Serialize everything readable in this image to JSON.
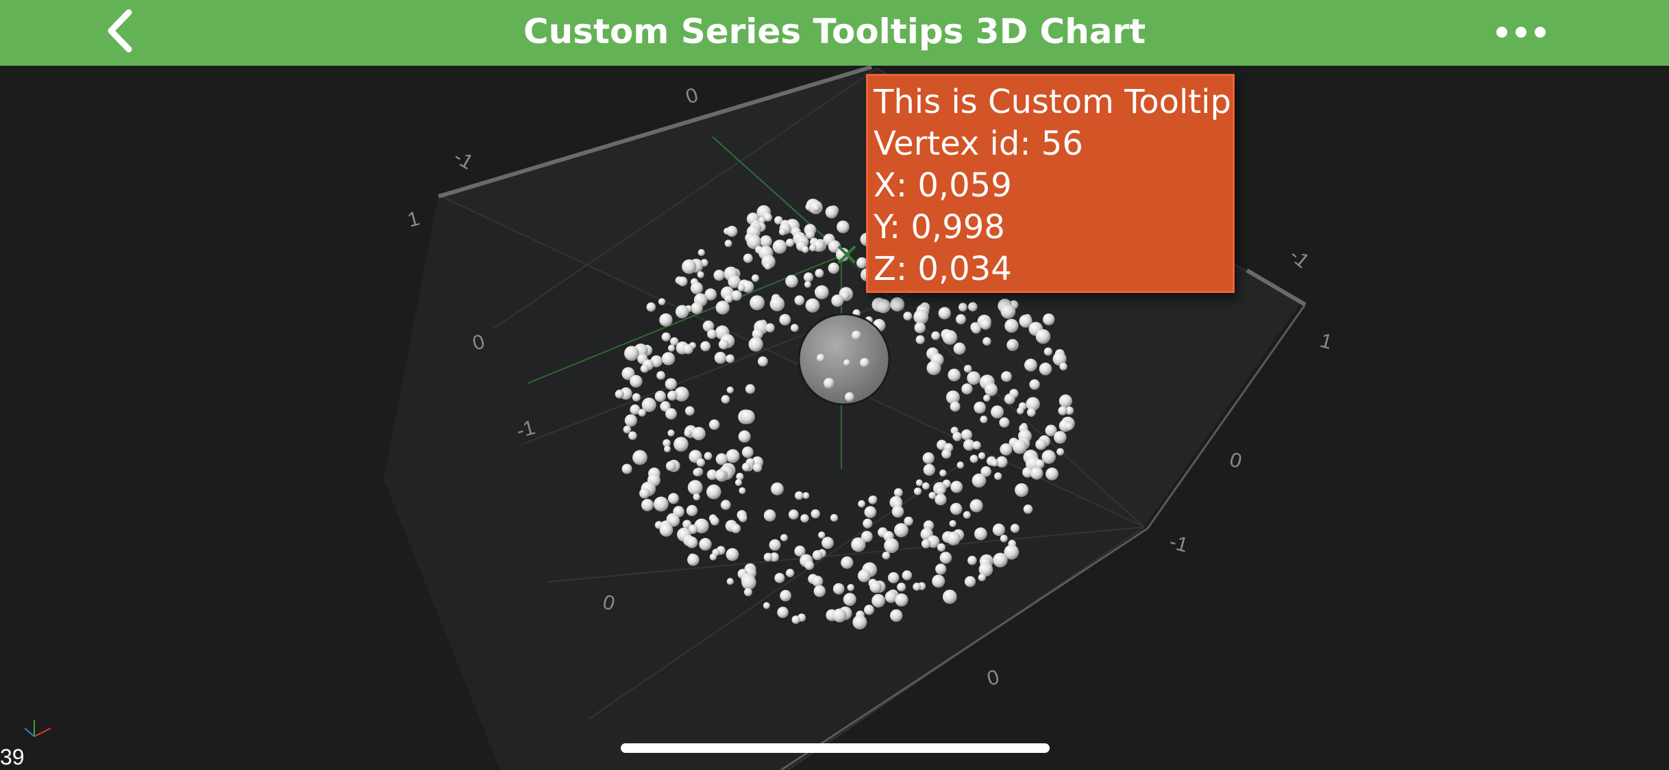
{
  "header": {
    "title": "Custom Series Tooltips 3D Chart",
    "back_icon": "chevron-left-icon",
    "more_icon": "more-horizontal-icon",
    "background_color": "#64b256"
  },
  "chart": {
    "background_color": "#1c1c1c",
    "point_color": "#ffffff",
    "crosshair_color": "#4caf50",
    "axis_labels": [
      "0",
      "-1",
      "1",
      "0",
      "-1",
      "-1",
      "1",
      "0",
      "-1",
      "0",
      "0"
    ]
  },
  "chart_data": {
    "type": "scatter",
    "dimensions": 3,
    "xlim": [
      -1,
      1
    ],
    "ylim": [
      -1,
      1
    ],
    "zlim": [
      -1,
      1
    ],
    "highlighted_point": {
      "x": 0.059,
      "y": 0.998,
      "z": 0.034
    }
  },
  "tooltip": {
    "title": "This is Custom Tooltip",
    "vertex_line": "Vertex id: 56",
    "x_line": "X: 0,059",
    "y_line": "Y: 0,998",
    "z_line": "Z: 0,034",
    "background_color": "#d35427"
  },
  "status": {
    "fps": "39"
  }
}
